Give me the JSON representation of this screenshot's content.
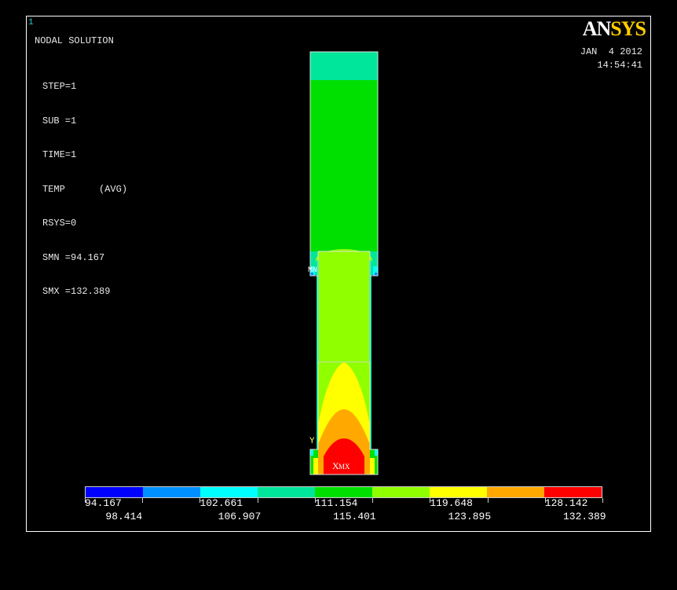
{
  "window": {
    "number": "1"
  },
  "header": {
    "title": "NODAL SOLUTION",
    "logo_an": "AN",
    "logo_sys": "SYS",
    "date": "JAN  4 2012",
    "time": "14:54:41"
  },
  "info": [
    "STEP=1",
    "SUB =1",
    "TIME=1",
    "TEMP      (AVG)",
    "RSYS=0",
    "SMN =94.167",
    "SMX =132.389"
  ],
  "markers": {
    "min": "MN",
    "max": "MX",
    "axis_y": "Y",
    "axis_x": "X"
  },
  "legend": {
    "colors": [
      "#0000ff",
      "#0090ff",
      "#00ffff",
      "#00e69a",
      "#00e000",
      "#90ff00",
      "#ffff00",
      "#ffa800",
      "#ff0000"
    ],
    "labels_top": [
      "94.167",
      "102.661",
      "111.154",
      "119.648",
      "128.142"
    ],
    "labels_bottom": [
      "98.414",
      "106.907",
      "115.401",
      "123.895",
      "132.389"
    ]
  },
  "palette": {
    "top_cap": "#00e69a",
    "upper_body": "#00e000",
    "lower_body": "#90ff00",
    "hot_1": "#ffff00",
    "hot_2": "#ffa800",
    "hot_3": "#ff0000",
    "edge": "#00ffff"
  }
}
